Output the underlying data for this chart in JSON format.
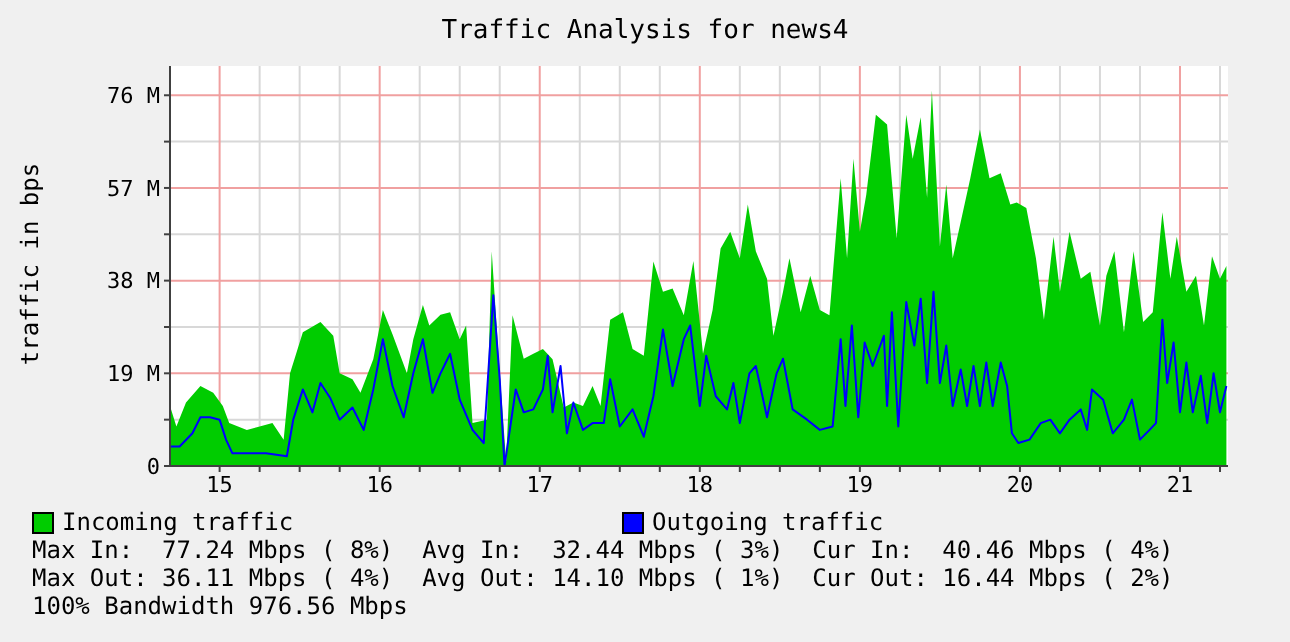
{
  "chart_data": {
    "type": "area",
    "title": "Traffic Analysis for news4",
    "ylabel": "traffic in bps",
    "xlim": [
      14.69,
      21.3
    ],
    "xticks": [
      15,
      {
        "value": 15.25,
        "label": null
      },
      {
        "value": 15.5,
        "label": null
      },
      {
        "value": 15.75,
        "label": null
      },
      16,
      {
        "value": 16.25,
        "label": null
      },
      {
        "value": 16.5,
        "label": null
      },
      {
        "value": 16.75,
        "label": null
      },
      17,
      {
        "value": 17.25,
        "label": null
      },
      {
        "value": 17.5,
        "label": null
      },
      {
        "value": 17.75,
        "label": null
      },
      18,
      {
        "value": 18.25,
        "label": null
      },
      {
        "value": 18.5,
        "label": null
      },
      {
        "value": 18.75,
        "label": null
      },
      19,
      {
        "value": 19.25,
        "label": null
      },
      {
        "value": 19.5,
        "label": null
      },
      {
        "value": 19.75,
        "label": null
      },
      20,
      {
        "value": 20.25,
        "label": null
      },
      {
        "value": 20.5,
        "label": null
      },
      {
        "value": 20.75,
        "label": null
      },
      21,
      {
        "value": 21.25,
        "label": null
      }
    ],
    "ylim": [
      0,
      82
    ],
    "yticks": [
      0,
      {
        "value": 9.5,
        "label": null
      },
      {
        "value": 19,
        "label": "19 M"
      },
      {
        "value": 28.5,
        "label": null
      },
      {
        "value": 38,
        "label": "38 M"
      },
      {
        "value": 47.5,
        "label": null
      },
      {
        "value": 57,
        "label": "57 M"
      },
      {
        "value": 66.5,
        "label": null
      },
      {
        "value": 76,
        "label": "76 M"
      }
    ],
    "grid": true,
    "legend": "bottom",
    "series": [
      {
        "name": "Incoming traffic",
        "color": "#00cc00",
        "x": [
          14.69,
          14.73,
          14.79,
          14.88,
          14.96,
          15.02,
          15.06,
          15.17,
          15.25,
          15.33,
          15.4,
          15.44,
          15.52,
          15.63,
          15.71,
          15.75,
          15.83,
          15.88,
          15.96,
          16.02,
          16.08,
          16.17,
          16.21,
          16.27,
          16.31,
          16.38,
          16.44,
          16.5,
          16.54,
          16.58,
          16.67,
          16.7,
          16.75,
          16.79,
          16.83,
          16.9,
          16.96,
          17.02,
          17.08,
          17.15,
          17.21,
          17.27,
          17.33,
          17.38,
          17.44,
          17.52,
          17.58,
          17.65,
          17.71,
          17.77,
          17.83,
          17.9,
          17.96,
          18.02,
          18.08,
          18.13,
          18.19,
          18.25,
          18.3,
          18.35,
          18.42,
          18.46,
          18.52,
          18.56,
          18.63,
          18.69,
          18.75,
          18.81,
          18.88,
          18.92,
          18.96,
          19.0,
          19.04,
          19.1,
          19.17,
          19.23,
          19.29,
          19.33,
          19.38,
          19.42,
          19.45,
          19.5,
          19.54,
          19.58,
          19.63,
          19.69,
          19.75,
          19.81,
          19.88,
          19.94,
          19.98,
          20.04,
          20.1,
          20.15,
          20.21,
          20.25,
          20.31,
          20.38,
          20.44,
          20.5,
          20.54,
          20.59,
          20.65,
          20.71,
          20.77,
          20.83,
          20.89,
          20.94,
          20.98,
          21.04,
          21.1,
          21.15,
          21.2,
          21.25,
          21.29
        ],
        "values": [
          12.3,
          8.1,
          13,
          16.4,
          15,
          12.3,
          8.8,
          7.4,
          8.1,
          8.8,
          5.4,
          19,
          27.4,
          29.5,
          26.7,
          19,
          17.8,
          15,
          21.9,
          32,
          27,
          19,
          26,
          33,
          28.8,
          31,
          31.5,
          26,
          28.8,
          8.8,
          9.5,
          44,
          19,
          1,
          30.9,
          22,
          23,
          24,
          21.9,
          12,
          13,
          12.3,
          16.4,
          12.3,
          30,
          31.5,
          24,
          22.6,
          41.9,
          35.7,
          36.4,
          30.9,
          42,
          23,
          32,
          44.6,
          48,
          42.6,
          53.6,
          44,
          38.4,
          26.7,
          35.7,
          42.6,
          31.5,
          39,
          32,
          30.9,
          59,
          42.6,
          63,
          48,
          55.6,
          72,
          70,
          46.7,
          72,
          63,
          71.5,
          55,
          77,
          45,
          57.7,
          42.6,
          50,
          59,
          69,
          59,
          60,
          53.6,
          54,
          52.9,
          42.6,
          30,
          47,
          35.7,
          48,
          38.4,
          39.8,
          28.8,
          39,
          44,
          27.4,
          44,
          29.5,
          31.5,
          52,
          38.4,
          47,
          35.7,
          39,
          28.8,
          43,
          38.4,
          41
        ]
      },
      {
        "name": "Outgoing traffic",
        "type": "line",
        "color": "#0000ff",
        "x": [
          14.69,
          14.75,
          14.83,
          14.88,
          14.94,
          15.0,
          15.04,
          15.08,
          15.17,
          15.29,
          15.42,
          15.46,
          15.52,
          15.58,
          15.63,
          15.69,
          15.75,
          15.83,
          15.9,
          15.96,
          16.02,
          16.08,
          16.15,
          16.21,
          16.27,
          16.33,
          16.38,
          16.44,
          16.5,
          16.58,
          16.65,
          16.71,
          16.75,
          16.78,
          16.85,
          16.9,
          16.96,
          17.02,
          17.05,
          17.08,
          17.13,
          17.17,
          17.21,
          17.27,
          17.33,
          17.4,
          17.44,
          17.5,
          17.58,
          17.65,
          17.71,
          17.77,
          17.83,
          17.9,
          17.94,
          18.0,
          18.04,
          18.1,
          18.17,
          18.21,
          18.25,
          18.31,
          18.35,
          18.42,
          18.48,
          18.52,
          18.58,
          18.67,
          18.75,
          18.83,
          18.88,
          18.91,
          18.95,
          18.99,
          19.03,
          19.08,
          19.15,
          19.17,
          19.2,
          19.24,
          19.29,
          19.34,
          19.38,
          19.42,
          19.46,
          19.5,
          19.54,
          19.58,
          19.63,
          19.67,
          19.71,
          19.75,
          19.79,
          19.83,
          19.88,
          19.92,
          19.95,
          19.99,
          20.06,
          20.13,
          20.19,
          20.25,
          20.31,
          20.38,
          20.42,
          20.45,
          20.52,
          20.58,
          20.65,
          20.7,
          20.75,
          20.81,
          20.85,
          20.89,
          20.92,
          20.96,
          21.0,
          21.04,
          21.08,
          21.13,
          21.17,
          21.21,
          21.25,
          21.29
        ],
        "values": [
          4,
          4,
          6.7,
          10,
          10,
          9.5,
          5.4,
          2.6,
          2.6,
          2.6,
          2,
          9.5,
          15.7,
          11,
          17,
          14,
          9.5,
          12,
          7.4,
          15.7,
          26,
          16.4,
          10,
          19,
          26,
          15,
          19,
          23,
          13.6,
          7.4,
          4.7,
          35,
          17.8,
          0,
          15.7,
          11,
          11.6,
          15.7,
          22.6,
          11,
          20.5,
          6.7,
          13,
          7.4,
          8.8,
          8.8,
          17.8,
          8.1,
          11.6,
          6,
          14.3,
          28,
          16.4,
          26,
          28.8,
          12.3,
          22.6,
          14.3,
          11.6,
          17,
          8.8,
          19,
          20.5,
          10,
          19,
          22,
          11.6,
          9.5,
          7.4,
          8.1,
          26,
          12.3,
          28.8,
          10,
          25.3,
          20.5,
          26.7,
          12.3,
          31.5,
          8.1,
          33.6,
          24.7,
          34.3,
          17,
          35.7,
          17,
          24.7,
          12.3,
          19.8,
          12.3,
          20.5,
          12.3,
          21.2,
          12.3,
          21.2,
          16.4,
          6.7,
          4.7,
          5.4,
          8.8,
          9.5,
          6.7,
          9.5,
          11.6,
          7.4,
          15.7,
          13.6,
          6.7,
          9.5,
          13.6,
          5.4,
          7.4,
          8.8,
          30,
          17,
          25.3,
          11,
          21.2,
          11,
          18.5,
          8.8,
          19,
          11,
          16.4
        ]
      }
    ],
    "annotations": [
      "Max In:  77.24 Mbps ( 8%)  Avg In:  32.44 Mbps ( 3%)  Cur In:  40.46 Mbps ( 4%)",
      "Max Out: 36.11 Mbps ( 4%)  Avg Out: 14.10 Mbps ( 1%)  Cur Out: 16.44 Mbps ( 2%)",
      "100% Bandwidth 976.56 Mbps"
    ]
  }
}
